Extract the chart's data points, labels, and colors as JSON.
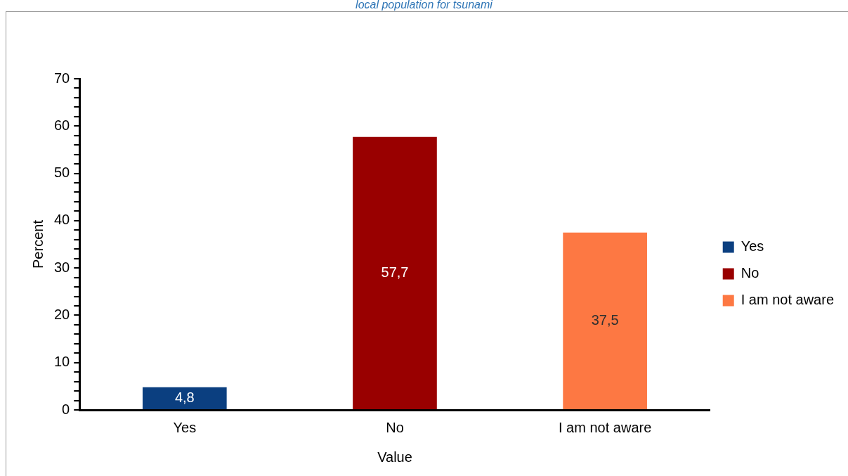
{
  "chart_data": {
    "type": "bar",
    "title": "local population for tsunami",
    "xlabel": "Value",
    "ylabel": "Percent",
    "categories": [
      "Yes",
      "No",
      "I am not aware"
    ],
    "series": [
      {
        "name": "Yes",
        "color": "#0b3f80",
        "values": [
          4.8,
          null,
          null
        ],
        "value_labels": [
          "4,8",
          null,
          null
        ]
      },
      {
        "name": "No",
        "color": "#990000",
        "values": [
          null,
          57.7,
          null
        ],
        "value_labels": [
          null,
          "57,7",
          null
        ]
      },
      {
        "name": "I am not aware",
        "color": "#fd7843",
        "values": [
          null,
          null,
          37.5
        ],
        "value_labels": [
          null,
          null,
          "37,5"
        ]
      }
    ],
    "ylim": [
      0,
      70
    ],
    "yticks": [
      0,
      {
        "value": 2,
        "label": null
      },
      {
        "value": 4,
        "label": null
      },
      {
        "value": 6,
        "label": null
      },
      {
        "value": 8,
        "label": null
      },
      10,
      {
        "value": 12,
        "label": null
      },
      {
        "value": 14,
        "label": null
      },
      {
        "value": 16,
        "label": null
      },
      {
        "value": 18,
        "label": null
      },
      20,
      {
        "value": 22,
        "label": null
      },
      {
        "value": 24,
        "label": null
      },
      {
        "value": 26,
        "label": null
      },
      {
        "value": 28,
        "label": null
      },
      30,
      {
        "value": 32,
        "label": null
      },
      {
        "value": 34,
        "label": null
      },
      {
        "value": 36,
        "label": null
      },
      {
        "value": 38,
        "label": null
      },
      40,
      {
        "value": 42,
        "label": null
      },
      {
        "value": 44,
        "label": null
      },
      {
        "value": 46,
        "label": null
      },
      {
        "value": 48,
        "label": null
      },
      50,
      {
        "value": 52,
        "label": null
      },
      {
        "value": 54,
        "label": null
      },
      {
        "value": 56,
        "label": null
      },
      {
        "value": 58,
        "label": null
      },
      60,
      {
        "value": 62,
        "label": null
      },
      {
        "value": 64,
        "label": null
      },
      {
        "value": 66,
        "label": null
      },
      {
        "value": 68,
        "label": null
      },
      70
    ],
    "grid": false,
    "legend": "right"
  }
}
